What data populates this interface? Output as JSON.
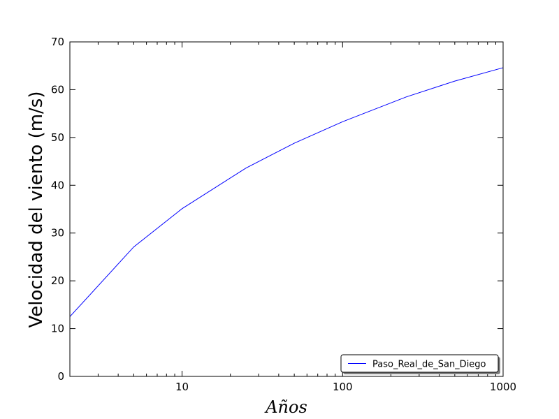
{
  "chart_data": {
    "type": "line",
    "xscale": "log",
    "xlim": [
      2,
      1000
    ],
    "ylim": [
      0,
      70
    ],
    "xticks": [
      10,
      100,
      1000
    ],
    "xtick_labels": [
      "10",
      "100",
      "1000"
    ],
    "yticks": [
      0,
      10,
      20,
      30,
      40,
      50,
      60,
      70
    ],
    "ytick_labels": [
      "0",
      "10",
      "20",
      "30",
      "40",
      "50",
      "60",
      "70"
    ],
    "xlabel": "Años",
    "ylabel": "Velocidad del viento (m/s)",
    "grid": false,
    "legend_position": "lower-right",
    "series": [
      {
        "name": "Paso_Real_de_San_Diego",
        "color": "#0000ff",
        "x": [
          2,
          5,
          10,
          25,
          50,
          100,
          250,
          500,
          1000
        ],
        "y": [
          12.5,
          27.1,
          35.1,
          43.6,
          48.8,
          53.3,
          58.5,
          61.8,
          64.6
        ]
      }
    ]
  }
}
